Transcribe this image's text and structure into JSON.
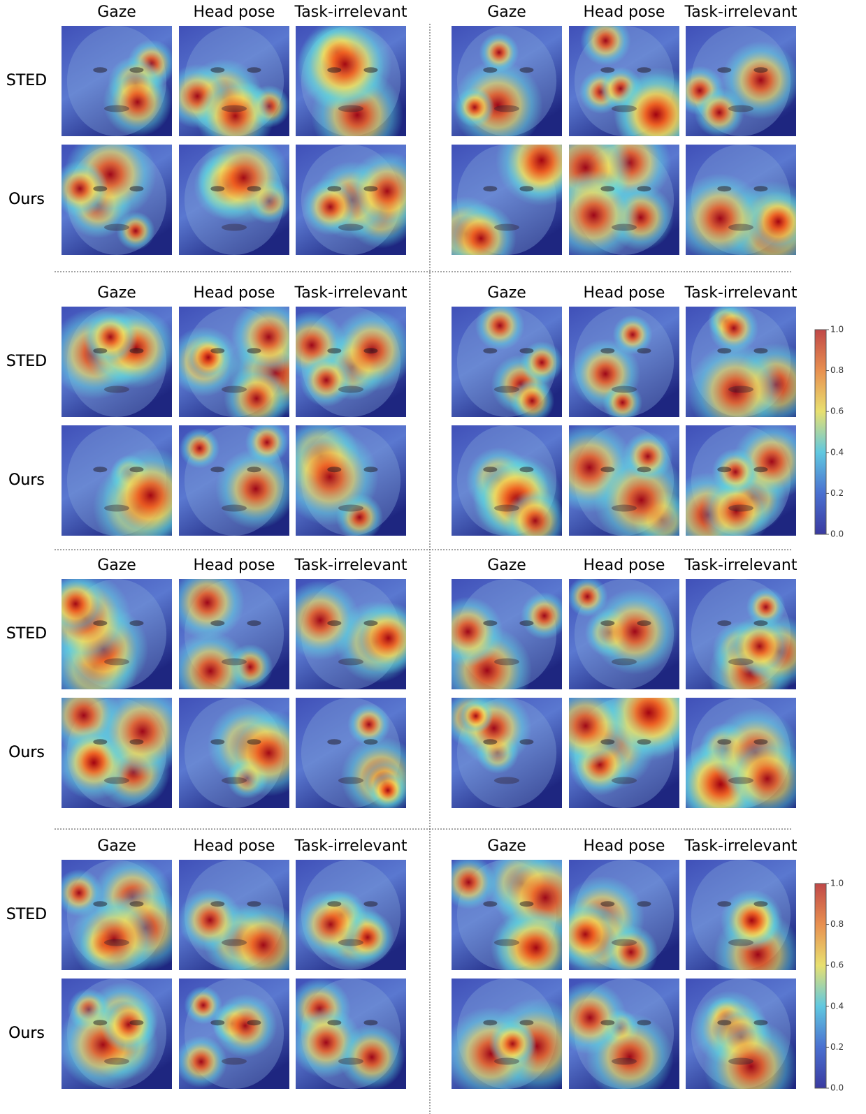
{
  "panels": [
    {
      "columns": [
        "Gaze",
        "Head pose",
        "Task-irrelevant"
      ],
      "rows": [
        "STED",
        "Ours"
      ]
    },
    {
      "columns": [
        "Gaze",
        "Head pose",
        "Task-irrelevant"
      ],
      "rows": [
        "STED",
        "Ours"
      ]
    },
    {
      "columns": [
        "Gaze",
        "Head pose",
        "Task-irrelevant"
      ],
      "rows": [
        "STED",
        "Ours"
      ]
    },
    {
      "columns": [
        "Gaze",
        "Head pose",
        "Task-irrelevant"
      ],
      "rows": [
        "STED",
        "Ours"
      ]
    },
    {
      "columns": [
        "Gaze",
        "Head pose",
        "Task-irrelevant"
      ],
      "rows": [
        "STED",
        "Ours"
      ]
    },
    {
      "columns": [
        "Gaze",
        "Head pose",
        "Task-irrelevant"
      ],
      "rows": [
        "STED",
        "Ours"
      ]
    },
    {
      "columns": [
        "Gaze",
        "Head pose",
        "Task-irrelevant"
      ],
      "rows": [
        "STED",
        "Ours"
      ]
    },
    {
      "columns": [
        "Gaze",
        "Head pose",
        "Task-irrelevant"
      ],
      "rows": [
        "STED",
        "Ours"
      ]
    }
  ],
  "colorbars": [
    {
      "lim": [
        0,
        1
      ],
      "ticks": [
        {
          "value": 0,
          "label": "0.0"
        },
        {
          "value": 0.2,
          "label": "0.2"
        },
        {
          "value": 0.4,
          "label": "0.4"
        },
        {
          "value": 0.6,
          "label": "0.6"
        },
        {
          "value": 0.8,
          "label": "0.8"
        },
        {
          "value": 1,
          "label": "1.0"
        }
      ]
    },
    {
      "lim": [
        0,
        1
      ],
      "ticks": [
        {
          "value": 0,
          "label": "0.0"
        },
        {
          "value": 0.2,
          "label": "0.2"
        },
        {
          "value": 0.4,
          "label": "0.4"
        },
        {
          "value": 0.6,
          "label": "0.6"
        },
        {
          "value": 0.8,
          "label": "0.8"
        },
        {
          "value": 1,
          "label": "1.0"
        }
      ]
    }
  ]
}
